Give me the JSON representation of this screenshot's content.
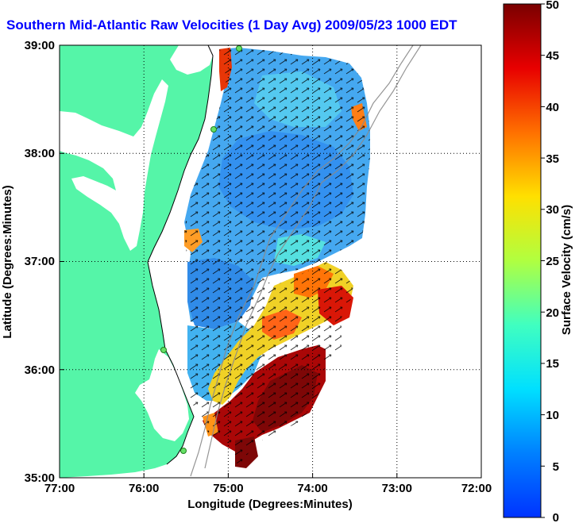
{
  "title": "Southern Mid-Atlantic Raw Velocities (1 Day Avg) 2009/05/23 1000 EDT",
  "x_axis": {
    "label": "Longitude (Degrees:Minutes)",
    "ticks": [
      "77:00",
      "76:00",
      "75:00",
      "74:00",
      "73:00",
      "72:00"
    ]
  },
  "y_axis": {
    "label": "Latitude (Degrees:Minutes)",
    "ticks": [
      "39:00",
      "38:00",
      "37:00",
      "36:00",
      "35:00"
    ]
  },
  "colorbar": {
    "label": "Surface Velocity (cm/s)",
    "ticks": [
      "50",
      "45",
      "40",
      "35",
      "30",
      "25",
      "20",
      "15",
      "10",
      "5",
      "0"
    ],
    "min": 0,
    "max": 50
  },
  "colors": {
    "land": "#55f5a8",
    "title": "#0000ff",
    "stations": "#66e066"
  }
}
